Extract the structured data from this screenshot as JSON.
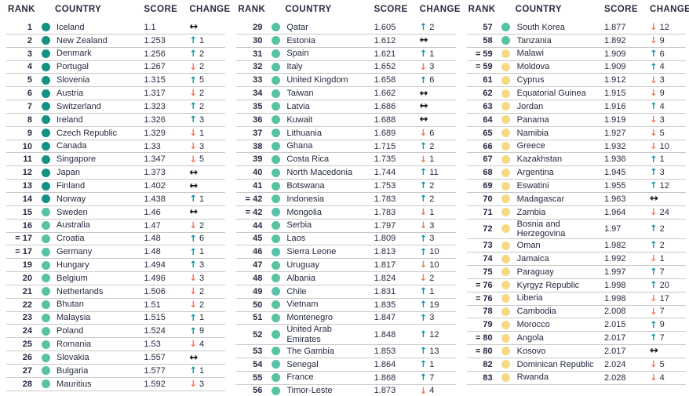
{
  "header": {
    "rank": "RANK",
    "country": "COUNTRY",
    "score": "SCORE",
    "change": "CHANGE"
  },
  "colors": {
    "header_text": "#262b40",
    "body_text": "#262b40",
    "divider": "#c9c9c9",
    "dot_very_high": "#129185",
    "dot_high": "#57c3a4",
    "dot_medium": "#f5da84",
    "arrow_up": "#0d93a4",
    "arrow_down": "#f4745e",
    "arrow_same": "#151515"
  },
  "change_icons": {
    "up": "↑",
    "down": "↓",
    "same": "↔"
  },
  "row_fields": [
    "rank",
    "country",
    "score",
    "change_direction",
    "change_value",
    "tier"
  ],
  "tables": [
    {
      "rows": [
        [
          "1",
          "Iceland",
          "1.1",
          "same",
          "",
          "very_high"
        ],
        [
          "2",
          "New Zealand",
          "1.253",
          "up",
          "1",
          "very_high"
        ],
        [
          "3",
          "Denmark",
          "1.256",
          "up",
          "2",
          "very_high"
        ],
        [
          "4",
          "Portugal",
          "1.267",
          "down",
          "2",
          "very_high"
        ],
        [
          "5",
          "Slovenia",
          "1.315",
          "up",
          "5",
          "very_high"
        ],
        [
          "6",
          "Austria",
          "1.317",
          "down",
          "2",
          "very_high"
        ],
        [
          "7",
          "Switzerland",
          "1.323",
          "up",
          "2",
          "very_high"
        ],
        [
          "8",
          "Ireland",
          "1.326",
          "up",
          "3",
          "very_high"
        ],
        [
          "9",
          "Czech Republic",
          "1.329",
          "down",
          "1",
          "very_high"
        ],
        [
          "10",
          "Canada",
          "1.33",
          "down",
          "3",
          "very_high"
        ],
        [
          "11",
          "Singapore",
          "1.347",
          "down",
          "5",
          "very_high"
        ],
        [
          "12",
          "Japan",
          "1.373",
          "same",
          "",
          "very_high"
        ],
        [
          "13",
          "Finland",
          "1.402",
          "same",
          "",
          "very_high"
        ],
        [
          "14",
          "Norway",
          "1.438",
          "up",
          "1",
          "very_high"
        ],
        [
          "15",
          "Sweden",
          "1.46",
          "same",
          "",
          "high"
        ],
        [
          "16",
          "Australia",
          "1.47",
          "down",
          "2",
          "high"
        ],
        [
          "= 17",
          "Croatia",
          "1.48",
          "up",
          "6",
          "high"
        ],
        [
          "= 17",
          "Germany",
          "1.48",
          "up",
          "1",
          "high"
        ],
        [
          "19",
          "Hungary",
          "1.494",
          "up",
          "3",
          "high"
        ],
        [
          "20",
          "Belgium",
          "1.496",
          "down",
          "3",
          "high"
        ],
        [
          "21",
          "Netherlands",
          "1.506",
          "down",
          "2",
          "high"
        ],
        [
          "22",
          "Bhutan",
          "1.51",
          "down",
          "2",
          "high"
        ],
        [
          "23",
          "Malaysia",
          "1.515",
          "up",
          "1",
          "high"
        ],
        [
          "24",
          "Poland",
          "1.524",
          "up",
          "9",
          "high"
        ],
        [
          "25",
          "Romania",
          "1.53",
          "down",
          "4",
          "high"
        ],
        [
          "26",
          "Slovakia",
          "1.557",
          "same",
          "",
          "high"
        ],
        [
          "27",
          "Bulgaria",
          "1.577",
          "up",
          "1",
          "high"
        ],
        [
          "28",
          "Mauritius",
          "1.592",
          "down",
          "3",
          "high"
        ]
      ]
    },
    {
      "rows": [
        [
          "29",
          "Qatar",
          "1.605",
          "up",
          "2",
          "high"
        ],
        [
          "30",
          "Estonia",
          "1.612",
          "same",
          "",
          "high"
        ],
        [
          "31",
          "Spain",
          "1.621",
          "up",
          "1",
          "high"
        ],
        [
          "32",
          "Italy",
          "1.652",
          "down",
          "3",
          "high"
        ],
        [
          "33",
          "United Kingdom",
          "1.658",
          "up",
          "6",
          "high"
        ],
        [
          "34",
          "Taiwan",
          "1.662",
          "same",
          "",
          "high"
        ],
        [
          "35",
          "Latvia",
          "1.686",
          "same",
          "",
          "high"
        ],
        [
          "36",
          "Kuwait",
          "1.688",
          "same",
          "",
          "high"
        ],
        [
          "37",
          "Lithuania",
          "1.689",
          "down",
          "6",
          "high"
        ],
        [
          "38",
          "Ghana",
          "1.715",
          "up",
          "2",
          "high"
        ],
        [
          "39",
          "Costa Rica",
          "1.735",
          "down",
          "1",
          "high"
        ],
        [
          "40",
          "North Macedonia",
          "1.744",
          "up",
          "11",
          "high"
        ],
        [
          "41",
          "Botswana",
          "1.753",
          "up",
          "2",
          "high"
        ],
        [
          "= 42",
          "Indonesia",
          "1.783",
          "up",
          "2",
          "high"
        ],
        [
          "= 42",
          "Mongolia",
          "1.783",
          "down",
          "1",
          "high"
        ],
        [
          "44",
          "Serbia",
          "1.797",
          "down",
          "3",
          "high"
        ],
        [
          "45",
          "Laos",
          "1.809",
          "up",
          "3",
          "high"
        ],
        [
          "46",
          "Sierra Leone",
          "1.813",
          "up",
          "10",
          "high"
        ],
        [
          "47",
          "Uruguay",
          "1.817",
          "down",
          "10",
          "high"
        ],
        [
          "48",
          "Albania",
          "1.824",
          "down",
          "2",
          "high"
        ],
        [
          "49",
          "Chile",
          "1.831",
          "up",
          "1",
          "high"
        ],
        [
          "50",
          "Vietnam",
          "1.835",
          "up",
          "19",
          "high"
        ],
        [
          "51",
          "Montenegro",
          "1.847",
          "up",
          "3",
          "high"
        ],
        [
          "52",
          "United Arab Emirates",
          "1.848",
          "up",
          "12",
          "high"
        ],
        [
          "53",
          "The Gambia",
          "1.853",
          "up",
          "13",
          "high"
        ],
        [
          "54",
          "Senegal",
          "1.864",
          "up",
          "1",
          "high"
        ],
        [
          "55",
          "France",
          "1.868",
          "up",
          "7",
          "high"
        ],
        [
          "56",
          "Timor-Leste",
          "1.873",
          "down",
          "4",
          "high"
        ]
      ]
    },
    {
      "rows": [
        [
          "57",
          "South Korea",
          "1.877",
          "down",
          "12",
          "high"
        ],
        [
          "58",
          "Tanzania",
          "1.892",
          "down",
          "9",
          "high"
        ],
        [
          "= 59",
          "Malawi",
          "1.909",
          "up",
          "6",
          "medium"
        ],
        [
          "= 59",
          "Moldova",
          "1.909",
          "up",
          "4",
          "medium"
        ],
        [
          "61",
          "Cyprus",
          "1.912",
          "down",
          "3",
          "medium"
        ],
        [
          "62",
          "Equatorial Guinea",
          "1.915",
          "down",
          "9",
          "medium"
        ],
        [
          "63",
          "Jordan",
          "1.916",
          "up",
          "4",
          "medium"
        ],
        [
          "64",
          "Panama",
          "1.919",
          "down",
          "3",
          "medium"
        ],
        [
          "65",
          "Namibia",
          "1.927",
          "down",
          "5",
          "medium"
        ],
        [
          "66",
          "Greece",
          "1.932",
          "down",
          "10",
          "medium"
        ],
        [
          "67",
          "Kazakhstan",
          "1.936",
          "up",
          "1",
          "medium"
        ],
        [
          "68",
          "Argentina",
          "1.945",
          "up",
          "3",
          "medium"
        ],
        [
          "69",
          "Eswatini",
          "1.955",
          "up",
          "12",
          "medium"
        ],
        [
          "70",
          "Madagascar",
          "1.963",
          "same",
          "",
          "medium"
        ],
        [
          "71",
          "Zambia",
          "1.964",
          "down",
          "24",
          "medium"
        ],
        [
          "72",
          "Bosnia and Herzegovina",
          "1.97",
          "up",
          "2",
          "medium"
        ],
        [
          "73",
          "Oman",
          "1.982",
          "up",
          "2",
          "medium"
        ],
        [
          "74",
          "Jamaica",
          "1.992",
          "down",
          "1",
          "medium"
        ],
        [
          "75",
          "Paraguay",
          "1.997",
          "up",
          "7",
          "medium"
        ],
        [
          "= 76",
          "Kyrgyz Republic",
          "1.998",
          "up",
          "20",
          "medium"
        ],
        [
          "= 76",
          "Liberia",
          "1.998",
          "down",
          "17",
          "medium"
        ],
        [
          "78",
          "Cambodia",
          "2.008",
          "down",
          "7",
          "medium"
        ],
        [
          "79",
          "Morocco",
          "2.015",
          "up",
          "9",
          "medium"
        ],
        [
          "= 80",
          "Angola",
          "2.017",
          "up",
          "7",
          "medium"
        ],
        [
          "= 80",
          "Kosovo",
          "2.017",
          "same",
          "",
          "medium"
        ],
        [
          "82",
          "Dominican Republic",
          "2.024",
          "down",
          "5",
          "medium"
        ],
        [
          "83",
          "Rwanda",
          "2.028",
          "down",
          "4",
          "medium"
        ]
      ]
    }
  ]
}
